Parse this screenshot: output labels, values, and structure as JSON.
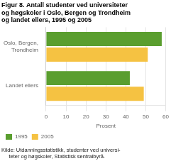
{
  "chart_data": {
    "type": "bar",
    "orientation": "horizontal",
    "title": "Figur 8. Antall studenter ved universiteter\nog høgskoler i Oslo, Bergen og Trondheim\nog landet ellers, 1995 og 2005",
    "categories": [
      "Oslo, Bergen,\nTrondheim",
      "Landet ellers"
    ],
    "series": [
      {
        "name": "1995",
        "color": "#5a9e2f",
        "values": [
          58,
          42
        ]
      },
      {
        "name": "2005",
        "color": "#f5c242",
        "values": [
          51,
          49
        ]
      }
    ],
    "xlabel": "Prosent",
    "xlim": [
      0,
      60
    ],
    "xticks": [
      0,
      10,
      20,
      30,
      40,
      50,
      60
    ],
    "grid": true,
    "legend": "bottom",
    "source": "Kilde: Utdanningsstatistikk, studenter ved universi-\n     teter og høgskoler, Statistisk sentralbyrå."
  }
}
